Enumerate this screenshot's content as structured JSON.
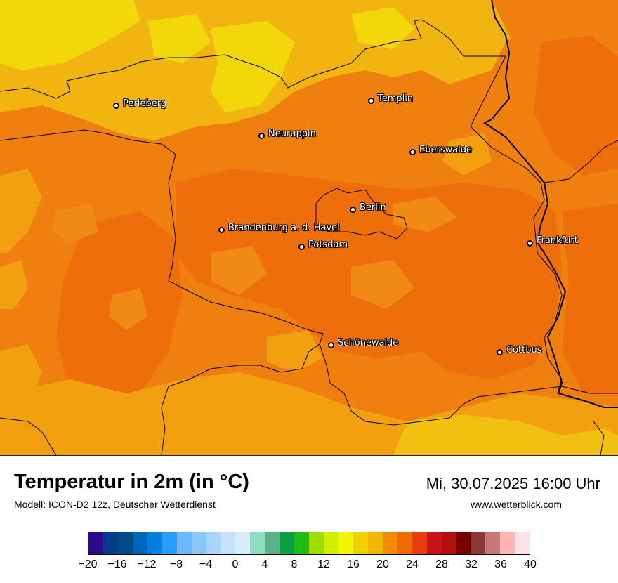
{
  "header": {
    "title": "Temperatur in 2m (in °C)",
    "subtitle": "Modell: ICON-D2 12z, Deutscher Wetterdienst",
    "datetime": "Mi, 30.07.2025 16:00 Uhr",
    "website": "www.wetterblick.com"
  },
  "map": {
    "base_color": "#ef8010",
    "cities": [
      {
        "name": "Perleberg"
      },
      {
        "name": "Templin"
      },
      {
        "name": "Neuruppin"
      },
      {
        "name": "Eberswalde"
      },
      {
        "name": "Berlin"
      },
      {
        "name": "Brandenburg a. d. Havel"
      },
      {
        "name": "Potsdam"
      },
      {
        "name": "Frankfurt"
      },
      {
        "name": "Schönewalde"
      },
      {
        "name": "Cottbus"
      }
    ]
  },
  "legend": {
    "colors": [
      "#2a0a8a",
      "#073c8c",
      "#004b87",
      "#0065b8",
      "#0080e0",
      "#2a9cff",
      "#6cb7ff",
      "#8cc6ff",
      "#a8d4ff",
      "#c4e2ff",
      "#d8ecff",
      "#90dcc0",
      "#5cb088",
      "#0aa040",
      "#22bb14",
      "#a0dc00",
      "#d0ee00",
      "#f2f500",
      "#f0d000",
      "#f0b800",
      "#f08c00",
      "#f06c00",
      "#e83c0a",
      "#c81414",
      "#b01010",
      "#7a0000",
      "#8c3838",
      "#c47878",
      "#ffb4b4",
      "#ffe0e6"
    ],
    "ticks": [
      "−20",
      "−16",
      "−12",
      "−8",
      "−4",
      "0",
      "4",
      "8",
      "12",
      "16",
      "20",
      "24",
      "28",
      "32",
      "36",
      "40"
    ]
  }
}
